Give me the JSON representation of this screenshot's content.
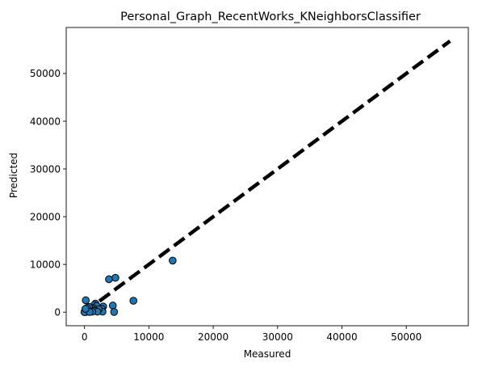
{
  "chart_data": {
    "type": "scatter",
    "title": "Personal_Graph_RecentWorks_KNeighborsClassifier",
    "xlabel": "Measured",
    "ylabel": "Predicted",
    "xlim": [
      -2840,
      59630
    ],
    "ylim": [
      -2840,
      59630
    ],
    "xticks": [
      0,
      10000,
      20000,
      30000,
      40000,
      50000
    ],
    "yticks": [
      0,
      10000,
      20000,
      30000,
      40000,
      50000
    ],
    "xtick_labels": [
      "0",
      "10000",
      "20000",
      "30000",
      "40000",
      "50000"
    ],
    "ytick_labels": [
      "0",
      "10000",
      "20000",
      "30000",
      "40000",
      "50000"
    ],
    "grid": false,
    "reference_line": {
      "x": [
        0,
        56790
      ],
      "y": [
        0,
        56790
      ],
      "style": "dashed",
      "color": "#000000"
    },
    "series": [
      {
        "marker_color": "#1f77b4",
        "edge_color": "#000000",
        "points": [
          [
            13700,
            10800
          ],
          [
            4800,
            7200
          ],
          [
            3800,
            6900
          ],
          [
            7600,
            2400
          ],
          [
            200,
            2500
          ],
          [
            4400,
            1400
          ],
          [
            4600,
            50
          ],
          [
            2900,
            1200
          ],
          [
            2700,
            700
          ],
          [
            2800,
            100
          ],
          [
            1700,
            1800
          ],
          [
            1500,
            1500
          ],
          [
            1900,
            1300
          ],
          [
            1300,
            900
          ],
          [
            1100,
            700
          ],
          [
            2200,
            600
          ],
          [
            1600,
            300
          ],
          [
            2000,
            100
          ],
          [
            900,
            400
          ],
          [
            700,
            1100
          ],
          [
            500,
            200
          ],
          [
            300,
            500
          ],
          [
            200,
            50
          ],
          [
            100,
            300
          ],
          [
            50,
            150
          ],
          [
            0,
            0
          ],
          [
            400,
            900
          ],
          [
            1200,
            100
          ],
          [
            800,
            50
          ],
          [
            150,
            700
          ]
        ]
      }
    ]
  }
}
